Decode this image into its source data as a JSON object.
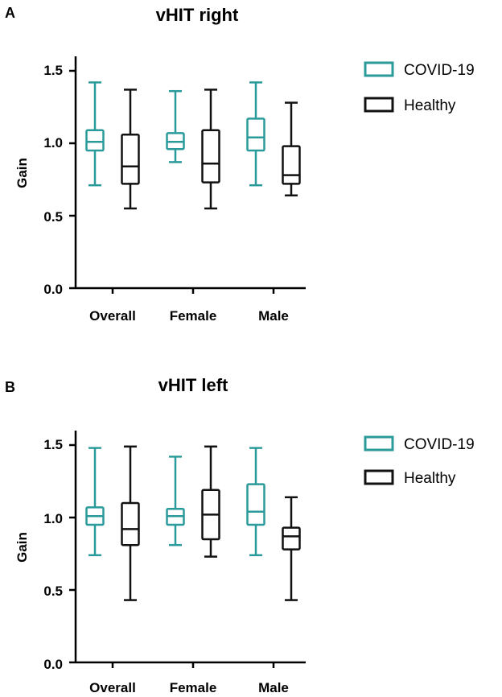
{
  "colors": {
    "covid": "#2a9a9a",
    "healthy": "#111111",
    "axis": "#000000"
  },
  "chart_data": [
    {
      "panel_label": "A",
      "type": "boxplot",
      "title": "vHIT right",
      "xlabel": "",
      "ylabel": "Gain",
      "ylim": [
        0,
        1.6
      ],
      "yticks": [
        0.0,
        0.5,
        1.0,
        1.5
      ],
      "ytick_labels": [
        "0.0",
        "0.5",
        "1.0",
        "1.5"
      ],
      "categories": [
        "Overall",
        "Female",
        "Male"
      ],
      "legend": [
        "COVID-19",
        "Healthy"
      ],
      "series": [
        {
          "name": "COVID-19",
          "boxes": [
            {
              "min": 0.71,
              "q1": 0.95,
              "median": 1.01,
              "q3": 1.09,
              "max": 1.42
            },
            {
              "min": 0.87,
              "q1": 0.96,
              "median": 1.01,
              "q3": 1.07,
              "max": 1.36
            },
            {
              "min": 0.71,
              "q1": 0.95,
              "median": 1.04,
              "q3": 1.17,
              "max": 1.42
            }
          ]
        },
        {
          "name": "Healthy",
          "boxes": [
            {
              "min": 0.55,
              "q1": 0.72,
              "median": 0.84,
              "q3": 1.06,
              "max": 1.37
            },
            {
              "min": 0.55,
              "q1": 0.73,
              "median": 0.86,
              "q3": 1.09,
              "max": 1.37
            },
            {
              "min": 0.64,
              "q1": 0.72,
              "median": 0.78,
              "q3": 0.98,
              "max": 1.28
            }
          ]
        }
      ]
    },
    {
      "panel_label": "B",
      "type": "boxplot",
      "title": "vHIT left",
      "xlabel": "",
      "ylabel": "Gain",
      "ylim": [
        0,
        1.6
      ],
      "yticks": [
        0.0,
        0.5,
        1.0,
        1.5
      ],
      "ytick_labels": [
        "0.0",
        "0.5",
        "1.0",
        "1.5"
      ],
      "categories": [
        "Overall",
        "Female",
        "Male"
      ],
      "legend": [
        "COVID-19",
        "Healthy"
      ],
      "series": [
        {
          "name": "COVID-19",
          "boxes": [
            {
              "min": 0.74,
              "q1": 0.95,
              "median": 1.01,
              "q3": 1.07,
              "max": 1.48
            },
            {
              "min": 0.81,
              "q1": 0.95,
              "median": 1.01,
              "q3": 1.06,
              "max": 1.42
            },
            {
              "min": 0.74,
              "q1": 0.95,
              "median": 1.04,
              "q3": 1.23,
              "max": 1.48
            }
          ]
        },
        {
          "name": "Healthy",
          "boxes": [
            {
              "min": 0.43,
              "q1": 0.81,
              "median": 0.92,
              "q3": 1.1,
              "max": 1.49
            },
            {
              "min": 0.73,
              "q1": 0.85,
              "median": 1.02,
              "q3": 1.19,
              "max": 1.49
            },
            {
              "min": 0.43,
              "q1": 0.78,
              "median": 0.87,
              "q3": 0.93,
              "max": 1.14
            }
          ]
        }
      ]
    }
  ]
}
